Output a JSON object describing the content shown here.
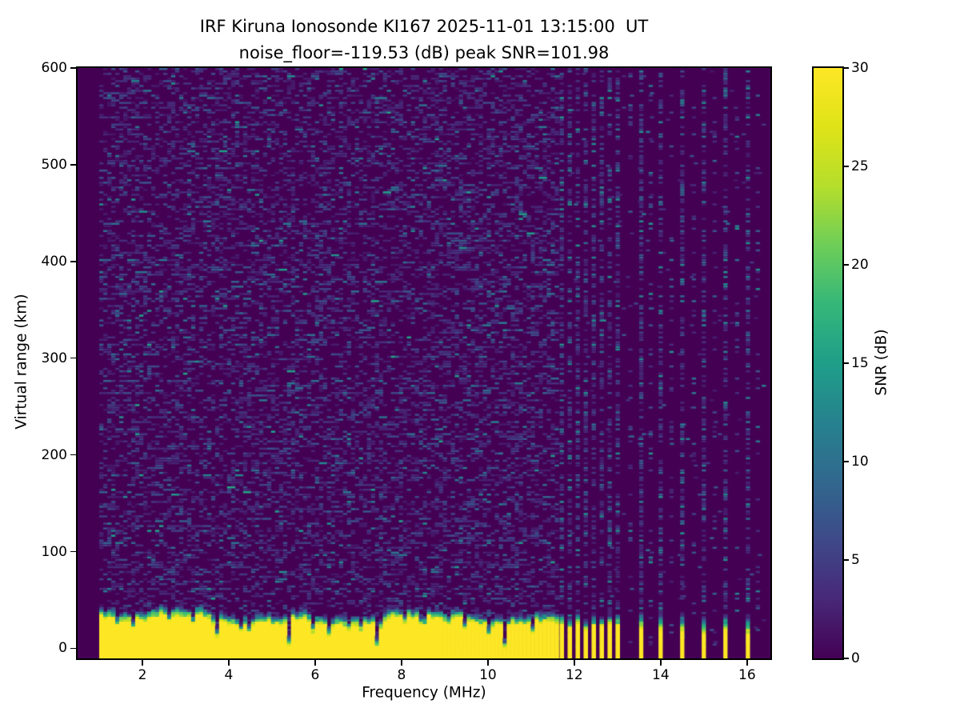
{
  "chart_data": {
    "type": "heatmap",
    "station": "IRF Kiruna Ionosonde KI167",
    "timestamp_ut": "2025-11-01 13:15:00 UT",
    "title_line1": "IRF Kiruna Ionosonde KI167 2025-11-01 13:15:00  UT",
    "title_line2": "noise_floor=-119.53 (dB) peak SNR=101.98",
    "noise_floor_db": -119.53,
    "peak_snr_db": 101.98,
    "xlabel": "Frequency (MHz)",
    "ylabel": "Virtual range (km)",
    "xlim": [
      0.5,
      16.54
    ],
    "ylim": [
      -10.4,
      600
    ],
    "x_ticks": [
      2,
      4,
      6,
      8,
      10,
      12,
      14,
      16
    ],
    "y_ticks": [
      0,
      100,
      200,
      300,
      400,
      500,
      600
    ],
    "grid": false,
    "colorbar": {
      "label": "SNR (dB)",
      "min": 0,
      "max": 30,
      "ticks": [
        0,
        5,
        10,
        15,
        20,
        25,
        30
      ],
      "colormap": "viridis"
    },
    "background_color": "#440154",
    "peak_color": "#fde725",
    "viridis_stops": [
      "#440154",
      "#482878",
      "#3e4989",
      "#31688e",
      "#26828e",
      "#1f9e89",
      "#35b779",
      "#6ece58",
      "#b5de2b",
      "#dfe318",
      "#fde725"
    ],
    "data_f_start": 1.0,
    "ground_band": {
      "f_start": 1.0,
      "f_end": 11.62,
      "top_km_mean": 34,
      "top_km_min": 27,
      "top_km_max": 42,
      "notches": [
        {
          "f": 1.4,
          "depth_km": 14
        },
        {
          "f": 1.75,
          "depth_km": 16
        },
        {
          "f": 2.6,
          "depth_km": 18
        },
        {
          "f": 3.1,
          "depth_km": 16
        },
        {
          "f": 3.65,
          "depth_km": 34
        },
        {
          "f": 4.2,
          "depth_km": 18
        },
        {
          "f": 4.45,
          "depth_km": 16
        },
        {
          "f": 5.35,
          "depth_km": 32
        },
        {
          "f": 5.9,
          "depth_km": 16
        },
        {
          "f": 6.3,
          "depth_km": 20
        },
        {
          "f": 6.7,
          "depth_km": 16
        },
        {
          "f": 7.0,
          "depth_km": 14
        },
        {
          "f": 7.4,
          "depth_km": 32
        },
        {
          "f": 8.0,
          "depth_km": 14
        },
        {
          "f": 8.45,
          "depth_km": 18
        },
        {
          "f": 9.0,
          "depth_km": 16
        },
        {
          "f": 9.4,
          "depth_km": 18
        },
        {
          "f": 10.0,
          "depth_km": 20
        },
        {
          "f": 10.35,
          "depth_km": 38
        },
        {
          "f": 11.0,
          "depth_km": 16
        }
      ]
    },
    "dense_stripes": {
      "f_start": 11.66,
      "f_end": 13.06,
      "spacing_mhz": 0.185,
      "width_mhz": 0.095,
      "top_km": 26
    },
    "isolated_stripes": {
      "freqs": [
        13.5,
        13.95,
        14.45,
        14.95,
        15.45,
        15.97
      ],
      "width_mhz": 0.09,
      "top_km": 21
    },
    "rfi_extra_columns": [
      13.25,
      13.72,
      14.2,
      14.72,
      15.2,
      15.72,
      16.2
    ],
    "strong_rfi_column": 13.5,
    "noise": {
      "cell_f_mhz": 0.0925,
      "cell_km": 2.5,
      "density_low_band": 0.32,
      "density_rfi_cols": 0.48,
      "density_extra_cols": 0.14,
      "density_quiet": 0.012
    }
  }
}
